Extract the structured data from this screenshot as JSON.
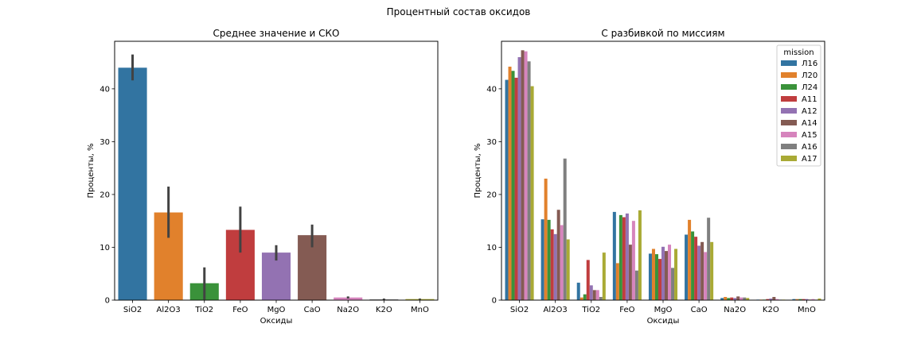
{
  "figure": {
    "suptitle": "Процентный состав оксидов"
  },
  "chart_data": [
    {
      "type": "bar",
      "title": "Среднее значение и СКО",
      "xlabel": "Оксиды",
      "ylabel": "Проценты, %",
      "ylim": [
        0,
        49
      ],
      "yticks": [
        0,
        10,
        20,
        30,
        40
      ],
      "grid": false,
      "categories": [
        "SiO2",
        "Al2O3",
        "TiO2",
        "FeO",
        "MgO",
        "CaO",
        "Na2O",
        "K2O",
        "MnO"
      ],
      "values": [
        44.0,
        16.6,
        3.2,
        13.3,
        9.0,
        12.3,
        0.5,
        0.15,
        0.2
      ],
      "error_low": [
        41.6,
        11.8,
        0.1,
        9.0,
        7.5,
        10.0,
        0.3,
        0.05,
        0.1
      ],
      "error_high": [
        46.5,
        21.5,
        6.2,
        17.7,
        10.4,
        14.3,
        0.7,
        0.3,
        0.3
      ],
      "colors": [
        "#3274a1",
        "#e1812c",
        "#3a923a",
        "#c03d3e",
        "#9372b2",
        "#845b53",
        "#d684bd",
        "#7f7f7f",
        "#a9aa35"
      ]
    },
    {
      "type": "bar",
      "title": "С разбивкой по миссиям",
      "xlabel": "Оксиды",
      "ylabel": "Проценты, %",
      "ylim": [
        0,
        49
      ],
      "yticks": [
        0,
        10,
        20,
        30,
        40
      ],
      "grid": false,
      "categories": [
        "SiO2",
        "Al2O3",
        "TiO2",
        "FeO",
        "MgO",
        "CaO",
        "Na2O",
        "K2O",
        "MnO"
      ],
      "legend": {
        "title": "mission",
        "placement": "top-right"
      },
      "series": [
        {
          "name": "Л16",
          "color": "#3274a1",
          "values": [
            41.7,
            15.3,
            3.3,
            16.7,
            8.8,
            12.4,
            0.4,
            0.1,
            0.2
          ]
        },
        {
          "name": "Л20",
          "color": "#e1812c",
          "values": [
            44.2,
            23.0,
            0.5,
            7.0,
            9.7,
            15.2,
            0.6,
            0.1,
            0.2
          ]
        },
        {
          "name": "Л24",
          "color": "#3a923a",
          "values": [
            43.4,
            15.2,
            1.1,
            16.1,
            8.7,
            13.0,
            0.4,
            0.1,
            0.2
          ]
        },
        {
          "name": "А11",
          "color": "#c03d3e",
          "values": [
            42.1,
            13.4,
            7.6,
            15.7,
            7.8,
            12.0,
            0.5,
            0.2,
            0.2
          ]
        },
        {
          "name": "А12",
          "color": "#9372b2",
          "values": [
            46.0,
            12.5,
            2.8,
            16.4,
            10.1,
            10.3,
            0.4,
            0.3,
            0.2
          ]
        },
        {
          "name": "А14",
          "color": "#845b53",
          "values": [
            47.3,
            17.1,
            1.9,
            10.5,
            9.3,
            11.0,
            0.7,
            0.6,
            0.1
          ]
        },
        {
          "name": "А15",
          "color": "#d684bd",
          "values": [
            47.1,
            14.2,
            1.9,
            15.0,
            10.5,
            9.1,
            0.5,
            0.2,
            0.2
          ]
        },
        {
          "name": "А16",
          "color": "#7f7f7f",
          "values": [
            45.2,
            26.8,
            0.6,
            5.6,
            6.1,
            15.6,
            0.5,
            0.1,
            0.1
          ]
        },
        {
          "name": "А17",
          "color": "#a9aa35",
          "values": [
            40.5,
            11.5,
            9.0,
            17.0,
            9.7,
            11.0,
            0.4,
            0.1,
            0.3
          ]
        }
      ]
    }
  ]
}
